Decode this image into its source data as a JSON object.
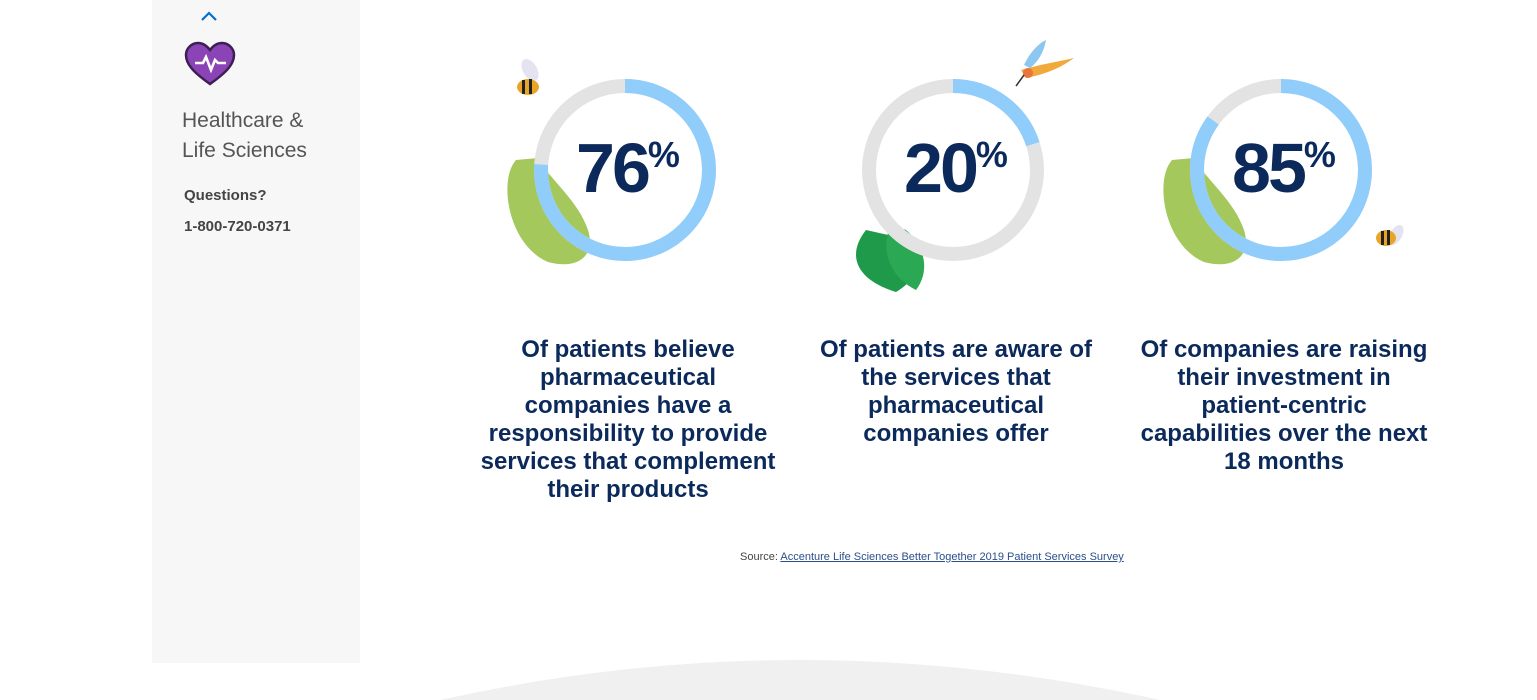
{
  "sidebar": {
    "collapse_icon": "chevron-up-icon",
    "category_icon": "heart-pulse-icon",
    "title_line1": "Healthcare &",
    "title_line2": "Life Sciences",
    "questions_label": "Questions?",
    "phone": "1-800-720-0371"
  },
  "stats": [
    {
      "value": "76",
      "unit": "%",
      "progress": 0.76,
      "description": "Of patients believe pharmaceutical companies have a responsibility to provide services that complement their products",
      "decorations": [
        "bee-icon",
        "leaf-icon"
      ]
    },
    {
      "value": "20",
      "unit": "%",
      "progress": 0.2,
      "description": "Of patients are aware of the services that pharmaceutical companies offer",
      "decorations": [
        "hummingbird-icon",
        "leaf-icon"
      ]
    },
    {
      "value": "85",
      "unit": "%",
      "progress": 0.85,
      "description": "Of companies are raising their investment in patient-centric capabilities over the next 18 months",
      "decorations": [
        "bee-icon",
        "leaf-icon"
      ]
    }
  ],
  "source": {
    "label": "Source:",
    "link_text": "Accenture Life Sciences Better Together 2019 Patient Services Survey"
  },
  "colors": {
    "ring_track": "#e3e3e3",
    "ring_fill": "#90cdfb",
    "heading_text": "#0b2a5b",
    "heart": "#8a44b5"
  }
}
